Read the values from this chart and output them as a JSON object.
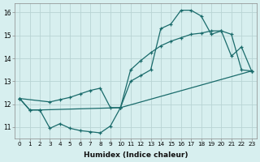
{
  "xlabel": "Humidex (Indice chaleur)",
  "bg_color": "#d7efef",
  "line_color": "#1a6b6b",
  "grid_color": "#b8d4d4",
  "curve1_x": [
    0,
    1,
    2,
    3,
    4,
    5,
    6,
    7,
    8,
    9,
    10,
    11,
    12,
    13,
    14,
    15,
    16,
    17,
    18,
    19,
    20,
    21,
    22,
    23
  ],
  "curve1_y": [
    12.25,
    11.75,
    11.75,
    10.95,
    11.15,
    10.95,
    10.85,
    10.8,
    10.75,
    11.05,
    11.85,
    13.0,
    13.25,
    13.5,
    15.3,
    15.5,
    16.1,
    16.1,
    15.85,
    15.05,
    15.2,
    14.1,
    14.5,
    13.45
  ],
  "curve2_x": [
    0,
    1,
    2,
    10,
    11,
    12,
    13,
    14,
    15,
    16,
    17,
    18,
    19,
    20,
    21,
    22,
    23
  ],
  "curve2_y": [
    12.25,
    11.75,
    11.75,
    11.85,
    13.5,
    13.9,
    14.25,
    14.55,
    14.75,
    14.9,
    15.05,
    15.1,
    15.2,
    15.2,
    15.05,
    13.5,
    13.45
  ],
  "curve3_x": [
    0,
    3,
    4,
    5,
    6,
    7,
    8,
    9,
    10,
    23
  ],
  "curve3_y": [
    12.25,
    12.1,
    12.2,
    12.3,
    12.45,
    12.6,
    12.7,
    11.85,
    11.85,
    13.45
  ],
  "ylim": [
    10.5,
    16.4
  ],
  "xlim": [
    -0.5,
    23.5
  ],
  "yticks": [
    11,
    12,
    13,
    14,
    15,
    16
  ],
  "xticks": [
    0,
    1,
    2,
    3,
    4,
    5,
    6,
    7,
    8,
    9,
    10,
    11,
    12,
    13,
    14,
    15,
    16,
    17,
    18,
    19,
    20,
    21,
    22,
    23
  ]
}
